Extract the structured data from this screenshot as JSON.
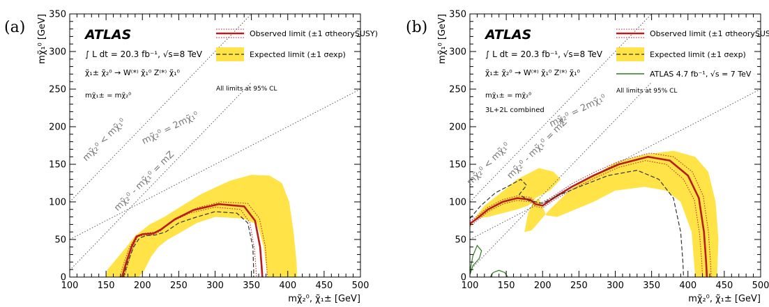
{
  "chart_data": [
    {
      "type": "line",
      "panel_label": "(a)",
      "title": "ATLAS",
      "process": {
        "integral": "∫ L dt = 20.3 fb⁻¹, √s=8 TeV",
        "reaction": "χ̃₁± χ̃₂⁰ → W⁽*⁾ χ̃₁⁰ Z⁽*⁾ χ̃₁⁰",
        "mass_condition": "mχ̃₁± = mχ̃₂⁰"
      },
      "note": "All limits at 95% CL",
      "xlabel": "mχ̃₂⁰, χ̃₁± [GeV]",
      "ylabel": "mχ̃₁⁰ [GeV]",
      "xlim": [
        100,
        500
      ],
      "ylim": [
        0,
        350
      ],
      "xticks": [
        100,
        150,
        200,
        250,
        300,
        350,
        400,
        450,
        500
      ],
      "yticks": [
        0,
        50,
        100,
        150,
        200,
        250,
        300,
        350
      ],
      "legend": [
        {
          "label": "Observed limit (±1 σtheorySUSY)",
          "style": "observed"
        },
        {
          "label": "Expected limit (±1 σexp)",
          "style": "expected"
        }
      ],
      "kinematic_lines": [
        {
          "label": "mχ̃₂⁰ < mχ̃₁⁰",
          "points": [
            [
              100,
              100
            ],
            [
              350,
              350
            ]
          ]
        },
        {
          "label": "mχ̃₂⁰ - mχ̃₁⁰ = mZ",
          "points": [
            [
              100,
              9
            ],
            [
              350,
              259
            ]
          ]
        },
        {
          "label": "mχ̃₂⁰ = 2mχ̃₁⁰",
          "points": [
            [
              100,
              50
            ],
            [
              500,
              250
            ]
          ]
        }
      ],
      "expected_band": [
        [
          150,
          0
        ],
        [
          152,
          10
        ],
        [
          165,
          25
        ],
        [
          178,
          40
        ],
        [
          190,
          55
        ],
        [
          210,
          70
        ],
        [
          230,
          80
        ],
        [
          250,
          92
        ],
        [
          280,
          110
        ],
        [
          320,
          128
        ],
        [
          350,
          136
        ],
        [
          375,
          135
        ],
        [
          392,
          125
        ],
        [
          402,
          100
        ],
        [
          408,
          60
        ],
        [
          412,
          20
        ],
        [
          413,
          0
        ],
        [
          372,
          0
        ],
        [
          367,
          40
        ],
        [
          358,
          70
        ],
        [
          338,
          78
        ],
        [
          300,
          80
        ],
        [
          275,
          72
        ],
        [
          250,
          58
        ],
        [
          235,
          50
        ],
        [
          222,
          40
        ],
        [
          212,
          27
        ],
        [
          202,
          8
        ],
        [
          195,
          0
        ]
      ],
      "series": [
        {
          "name": "Observed limit",
          "style": "observed",
          "points": [
            [
              172,
              0
            ],
            [
              178,
              20
            ],
            [
              185,
              40
            ],
            [
              192,
              54
            ],
            [
              200,
              57
            ],
            [
              215,
              58
            ],
            [
              225,
              63
            ],
            [
              245,
              77
            ],
            [
              270,
              89
            ],
            [
              305,
              97
            ],
            [
              340,
              94
            ],
            [
              355,
              75
            ],
            [
              362,
              40
            ],
            [
              364,
              15
            ],
            [
              365,
              0
            ]
          ]
        },
        {
          "name": "Observed +1σ",
          "style": "observed-dotted",
          "points": [
            [
              175,
              0
            ],
            [
              181,
              20
            ],
            [
              187,
              40
            ],
            [
              194,
              55
            ],
            [
              202,
              58
            ],
            [
              217,
              60
            ],
            [
              228,
              65
            ],
            [
              250,
              80
            ],
            [
              275,
              92
            ],
            [
              308,
              100
            ],
            [
              345,
              98
            ],
            [
              361,
              78
            ],
            [
              369,
              42
            ],
            [
              371,
              15
            ],
            [
              372,
              0
            ]
          ]
        },
        {
          "name": "Observed -1σ",
          "style": "observed-dotted",
          "points": [
            [
              169,
              0
            ],
            [
              175,
              20
            ],
            [
              182,
              39
            ],
            [
              190,
              52
            ],
            [
              198,
              55
            ],
            [
              213,
              56
            ],
            [
              223,
              60
            ],
            [
              241,
              74
            ],
            [
              265,
              85
            ],
            [
              300,
              93
            ],
            [
              335,
              90
            ],
            [
              348,
              72
            ],
            [
              354,
              38
            ],
            [
              356,
              15
            ],
            [
              357,
              0
            ]
          ]
        },
        {
          "name": "Expected limit",
          "style": "expected",
          "points": [
            [
              174,
              0
            ],
            [
              180,
              20
            ],
            [
              188,
              40
            ],
            [
              196,
              52
            ],
            [
              205,
              55
            ],
            [
              218,
              56
            ],
            [
              232,
              60
            ],
            [
              250,
              72
            ],
            [
              275,
              80
            ],
            [
              300,
              87
            ],
            [
              330,
              85
            ],
            [
              345,
              72
            ],
            [
              352,
              40
            ],
            [
              353,
              10
            ],
            [
              353,
              0
            ]
          ]
        }
      ]
    },
    {
      "type": "line",
      "panel_label": "(b)",
      "title": "ATLAS",
      "process": {
        "integral": "∫ L dt = 20.3 fb⁻¹, √s=8 TeV",
        "reaction": "χ̃₁± χ̃₂⁰ → W⁽*⁾ χ̃₁⁰ Z⁽*⁾ χ̃₁⁰",
        "mass_condition": "mχ̃₁± = mχ̃₂⁰",
        "combination": "3L+2L combined"
      },
      "note": "All limits at 95% CL",
      "xlabel": "mχ̃₂⁰, χ̃₁± [GeV]",
      "ylabel": "mχ̃₁⁰ [GeV]",
      "xlim": [
        100,
        500
      ],
      "ylim": [
        0,
        350
      ],
      "xticks": [
        100,
        150,
        200,
        250,
        300,
        350,
        400,
        450,
        500
      ],
      "yticks": [
        0,
        50,
        100,
        150,
        200,
        250,
        300,
        350
      ],
      "legend": [
        {
          "label": "Observed limit (±1 σtheorySUSY)",
          "style": "observed"
        },
        {
          "label": "Expected limit (±1 σexp)",
          "style": "expected"
        },
        {
          "label": "ATLAS 4.7 fb⁻¹, √s = 7 TeV",
          "style": "old"
        }
      ],
      "kinematic_lines": [
        {
          "label": "mχ̃₂⁰ < mχ̃₁⁰",
          "points": [
            [
              100,
              100
            ],
            [
              350,
              350
            ]
          ]
        },
        {
          "label": "mχ̃₂⁰ - mχ̃₁⁰ = mZ",
          "points": [
            [
              100,
              9
            ],
            [
              350,
              259
            ]
          ]
        },
        {
          "label": "mχ̃₂⁰ = 2mχ̃₁⁰",
          "points": [
            [
              100,
              50
            ],
            [
              500,
              250
            ]
          ]
        }
      ],
      "expected_band": [
        [
          100,
          65
        ],
        [
          108,
          80
        ],
        [
          120,
          95
        ],
        [
          140,
          110
        ],
        [
          165,
          130
        ],
        [
          195,
          145
        ],
        [
          215,
          140
        ],
        [
          225,
          130
        ],
        [
          210,
          115
        ],
        [
          190,
          105
        ],
        [
          180,
          85
        ],
        [
          175,
          60
        ],
        [
          185,
          62
        ],
        [
          210,
          90
        ],
        [
          240,
          118
        ],
        [
          270,
          135
        ],
        [
          300,
          152
        ],
        [
          340,
          163
        ],
        [
          380,
          168
        ],
        [
          410,
          160
        ],
        [
          428,
          140
        ],
        [
          438,
          100
        ],
        [
          442,
          50
        ],
        [
          440,
          0
        ],
        [
          410,
          0
        ],
        [
          405,
          60
        ],
        [
          390,
          100
        ],
        [
          370,
          115
        ],
        [
          340,
          120
        ],
        [
          300,
          115
        ],
        [
          270,
          100
        ],
        [
          240,
          88
        ],
        [
          220,
          80
        ],
        [
          205,
          82
        ],
        [
          195,
          105
        ],
        [
          180,
          95
        ],
        [
          165,
          90
        ],
        [
          145,
          85
        ],
        [
          125,
          80
        ],
        [
          110,
          78
        ],
        [
          100,
          70
        ]
      ],
      "series": [
        {
          "name": "Observed limit",
          "style": "observed",
          "points": [
            [
              100,
              71
            ],
            [
              110,
              78
            ],
            [
              125,
              90
            ],
            [
              145,
              100
            ],
            [
              165,
              105
            ],
            [
              183,
              103
            ],
            [
              190,
              97
            ],
            [
              200,
              95
            ],
            [
              215,
              105
            ],
            [
              240,
              120
            ],
            [
              270,
              135
            ],
            [
              305,
              150
            ],
            [
              345,
              160
            ],
            [
              375,
              155
            ],
            [
              400,
              135
            ],
            [
              415,
              105
            ],
            [
              422,
              60
            ],
            [
              425,
              20
            ],
            [
              426,
              0
            ]
          ]
        },
        {
          "name": "Observed +1σ",
          "style": "observed-dotted",
          "points": [
            [
              100,
              74
            ],
            [
              110,
              81
            ],
            [
              125,
              93
            ],
            [
              145,
              103
            ],
            [
              165,
              108
            ],
            [
              183,
              106
            ],
            [
              190,
              100
            ],
            [
              200,
              98
            ],
            [
              215,
              108
            ],
            [
              240,
              124
            ],
            [
              270,
              139
            ],
            [
              305,
              154
            ],
            [
              348,
              165
            ],
            [
              380,
              160
            ],
            [
              406,
              140
            ],
            [
              421,
              108
            ],
            [
              428,
              62
            ],
            [
              431,
              20
            ],
            [
              432,
              0
            ]
          ]
        },
        {
          "name": "Observed -1σ",
          "style": "observed-dotted",
          "points": [
            [
              100,
              68
            ],
            [
              110,
              75
            ],
            [
              125,
              87
            ],
            [
              145,
              97
            ],
            [
              165,
              102
            ],
            [
              183,
              100
            ],
            [
              190,
              94
            ],
            [
              200,
              92
            ],
            [
              215,
              102
            ],
            [
              240,
              116
            ],
            [
              270,
              131
            ],
            [
              305,
              146
            ],
            [
              342,
              155
            ],
            [
              370,
              150
            ],
            [
              394,
              130
            ],
            [
              409,
              102
            ],
            [
              416,
              58
            ],
            [
              419,
              20
            ],
            [
              420,
              0
            ]
          ]
        },
        {
          "name": "Expected limit",
          "style": "expected",
          "points": [
            [
              100,
              78
            ],
            [
              115,
              95
            ],
            [
              135,
              112
            ],
            [
              155,
              122
            ],
            [
              170,
              130
            ],
            [
              178,
              122
            ],
            [
              168,
              110
            ],
            [
              180,
              102
            ],
            [
              200,
              98
            ],
            [
              220,
              108
            ],
            [
              250,
              120
            ],
            [
              290,
              135
            ],
            [
              330,
              142
            ],
            [
              360,
              130
            ],
            [
              380,
              105
            ],
            [
              390,
              60
            ],
            [
              393,
              20
            ],
            [
              394,
              0
            ]
          ]
        },
        {
          "name": "ATLAS 4.7 fb⁻¹, √s = 7 TeV",
          "style": "old",
          "points": [
            [
              100,
              3
            ],
            [
              104,
              15
            ],
            [
              113,
              25
            ],
            [
              116,
              35
            ],
            [
              110,
              42
            ],
            [
              104,
              28
            ],
            [
              101,
              12
            ],
            [
              100,
              3
            ]
          ]
        },
        {
          "name": "ATLAS 4.7 fb⁻¹, √s = 7 TeV (b)",
          "style": "old",
          "points": [
            [
              128,
              0
            ],
            [
              132,
              6
            ],
            [
              140,
              9
            ],
            [
              148,
              6
            ],
            [
              152,
              0
            ]
          ]
        }
      ]
    }
  ],
  "colors": {
    "band": "#ffe347",
    "observed": "#b81c1c",
    "expected": "#333333",
    "old": "#2e7d1f",
    "kinematic": "#555555",
    "annotation": "#777777"
  }
}
